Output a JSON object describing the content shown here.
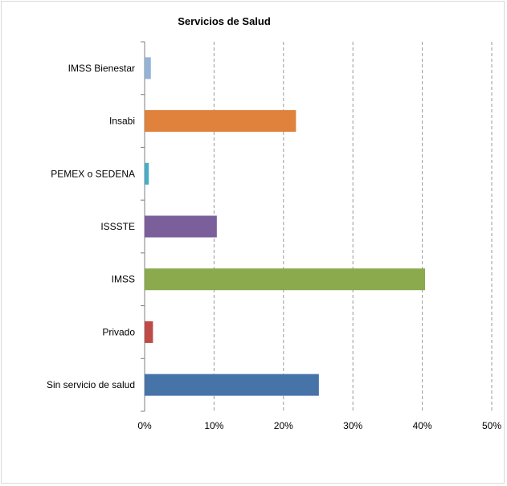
{
  "chart_data": {
    "type": "bar",
    "orientation": "horizontal",
    "title": "Servicios de Salud",
    "xlabel": "",
    "ylabel": "",
    "categories": [
      "IMSS Bienestar",
      "Insabi",
      "PEMEX o SEDENA",
      "ISSSTE",
      "IMSS",
      "Privado",
      "Sin servicio de salud"
    ],
    "values": [
      0.9,
      21.8,
      0.6,
      10.4,
      40.4,
      1.2,
      25.1
    ],
    "colors": [
      "#95b3d7",
      "#e0823b",
      "#4aacc6",
      "#7a5f9a",
      "#8aaa4d",
      "#be4b48",
      "#4673a8"
    ],
    "xlim": [
      0,
      50
    ],
    "xticks": [
      "0%",
      "10%",
      "20%",
      "30%",
      "40%",
      "50%"
    ],
    "grid": "vertical dashed",
    "legend": "none"
  }
}
